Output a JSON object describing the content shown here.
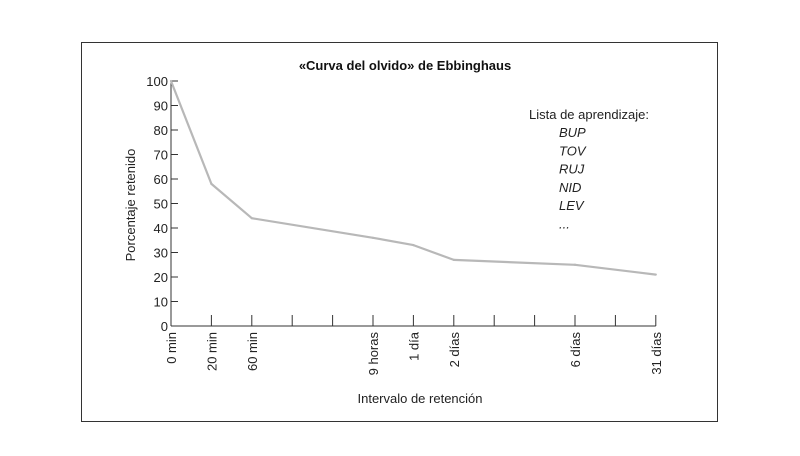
{
  "chart_data": {
    "type": "line",
    "title": "«Curva del olvido» de Ebbinghaus",
    "xlabel": "Intervalo de retención",
    "ylabel": "Porcentaje retenido",
    "ylim": [
      0,
      100
    ],
    "yticks": [
      0,
      10,
      20,
      30,
      40,
      50,
      60,
      70,
      80,
      90,
      100
    ],
    "categories": [
      "0 min",
      "20 min",
      "60 min",
      "9 horas",
      "1 día",
      "2 días",
      "6 días",
      "31 días"
    ],
    "category_slots": [
      0,
      1,
      2,
      5,
      6,
      7,
      10,
      12
    ],
    "slot_count": 13,
    "values": [
      100,
      58,
      44,
      36,
      33,
      27,
      25,
      21
    ],
    "line_color": "#b8b8b8",
    "legend": {
      "title": "Lista de aprendizaje:",
      "items": [
        "BUP",
        "TOV",
        "RUJ",
        "NID",
        "LEV",
        "..."
      ]
    }
  }
}
